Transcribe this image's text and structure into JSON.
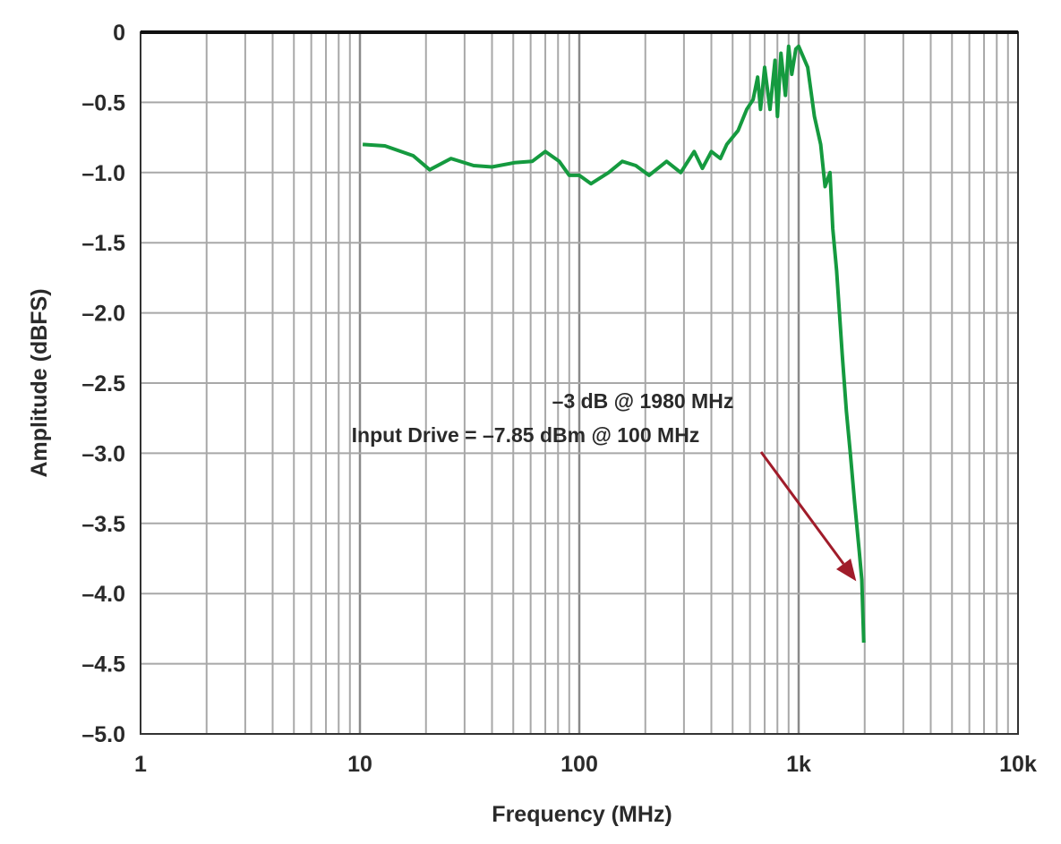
{
  "chart_data": {
    "type": "line",
    "title": "",
    "xlabel": "Frequency (MHz)",
    "ylabel": "Amplitude (dBFS)",
    "xscale": "log",
    "xlim": [
      1,
      10000
    ],
    "ylim": [
      -5.0,
      0
    ],
    "grid": true,
    "x_tick_labels": [
      "1",
      "10",
      "100",
      "1k",
      "10k"
    ],
    "x_ticks": [
      1,
      10,
      100,
      1000,
      10000
    ],
    "y_tick_labels": [
      "0",
      "–0.5",
      "–1.0",
      "–1.5",
      "–2.0",
      "–2.5",
      "–3.0",
      "–3.5",
      "–4.0",
      "–4.5",
      "–5.0"
    ],
    "y_ticks": [
      0,
      -0.5,
      -1.0,
      -1.5,
      -2.0,
      -2.5,
      -3.0,
      -3.5,
      -4.0,
      -4.5,
      -5.0
    ],
    "series": [
      {
        "color": "#159a3f",
        "x": [
          10.3,
          13,
          17.5,
          20.8,
          26,
          33,
          40,
          50.6,
          61,
          70,
          81,
          90,
          100,
          113,
          136,
          157,
          181,
          208,
          250,
          290,
          334,
          364,
          400,
          440,
          470,
          530,
          580,
          620,
          650,
          670,
          700,
          740,
          780,
          800,
          830,
          870,
          900,
          930,
          970,
          1000,
          1100,
          1180,
          1260,
          1320,
          1390,
          1430,
          1490,
          1580,
          1650,
          1720,
          1800,
          1890,
          1940,
          1980
        ],
        "y": [
          -0.8,
          -0.81,
          -0.88,
          -0.98,
          -0.9,
          -0.95,
          -0.96,
          -0.93,
          -0.92,
          -0.85,
          -0.92,
          -1.02,
          -1.02,
          -1.08,
          -1.0,
          -0.92,
          -0.95,
          -1.02,
          -0.92,
          -1.0,
          -0.85,
          -0.97,
          -0.85,
          -0.9,
          -0.8,
          -0.7,
          -0.55,
          -0.48,
          -0.32,
          -0.55,
          -0.25,
          -0.55,
          -0.2,
          -0.6,
          -0.15,
          -0.45,
          -0.1,
          -0.3,
          -0.12,
          -0.1,
          -0.25,
          -0.6,
          -0.8,
          -1.1,
          -1.0,
          -1.4,
          -1.7,
          -2.3,
          -2.7,
          -3.0,
          -3.35,
          -3.7,
          -3.9,
          -4.35
        ]
      }
    ],
    "annotations": [
      {
        "text_lines": [
          "–3 dB @ 1980 MHz",
          "Input Drive = –7.85 dBm @ 100 MHz"
        ],
        "arrow_to": {
          "x": 1900,
          "y": -3.95
        },
        "arrow_color": "#a01c2a"
      }
    ]
  }
}
